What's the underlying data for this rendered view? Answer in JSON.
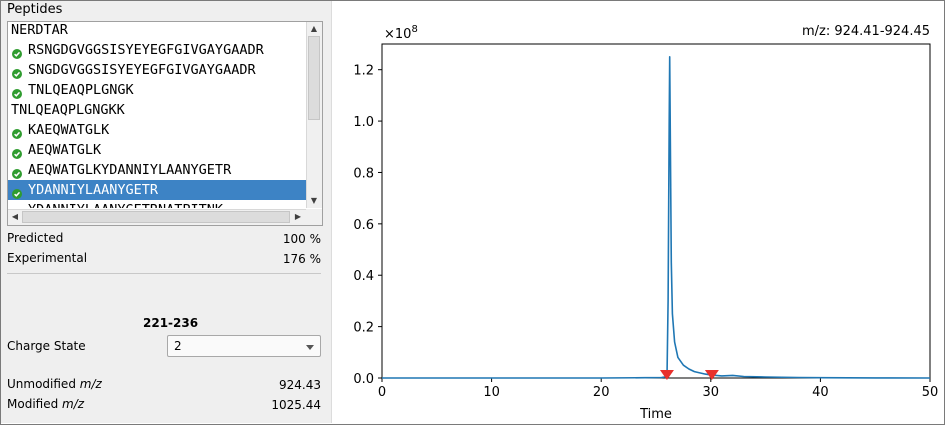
{
  "peptides": {
    "title": "Peptides",
    "items": [
      {
        "label": "NERDTAR",
        "checked": false,
        "selected": false
      },
      {
        "label": "RSNGDGVGGSISYEYEGFGIVGAYGAADR",
        "checked": true,
        "selected": false
      },
      {
        "label": "SNGDGVGGSISYEYEGFGIVGAYGAADR",
        "checked": true,
        "selected": false
      },
      {
        "label": "TNLQEAQPLGNGK",
        "checked": true,
        "selected": false
      },
      {
        "label": "TNLQEAQPLGNGKK",
        "checked": false,
        "selected": false
      },
      {
        "label": "KAEQWATGLK",
        "checked": true,
        "selected": false
      },
      {
        "label": "AEQWATGLK",
        "checked": true,
        "selected": false
      },
      {
        "label": "AEQWATGLKYDANNIYLAANYGETR",
        "checked": true,
        "selected": false
      },
      {
        "label": "YDANNIYLAANYGETR",
        "checked": true,
        "selected": true
      },
      {
        "label": "YDANNIYLAANYGETRNATPITNK",
        "checked": true,
        "selected": false
      }
    ]
  },
  "stats": {
    "predicted_label": "Predicted",
    "predicted_value": "100 %",
    "experimental_label": "Experimental",
    "experimental_value": "176 %"
  },
  "peptide_range": "221-236",
  "charge": {
    "label": "Charge State",
    "value": "2"
  },
  "mz": {
    "unmodified_label_prefix": "Unmodified ",
    "unmodified_label_italic": "m/z",
    "unmodified_value": "924.43",
    "modified_label_prefix": "Modified ",
    "modified_label_italic": "m/z",
    "modified_value": "1025.44"
  },
  "colors": {
    "selection": "#3d83c5",
    "check": "#2f9c2f",
    "trace": "#1f77b4",
    "marker": "#e8302c"
  },
  "chart_data": {
    "type": "line",
    "title": "m/z: 924.41-924.45",
    "xlabel": "Time",
    "ylabel": "",
    "y_multiplier_label": "×10",
    "y_multiplier_exp": "8",
    "xlim": [
      0,
      50
    ],
    "ylim": [
      0,
      1.3
    ],
    "xticks": [
      0,
      10,
      20,
      30,
      40,
      50
    ],
    "yticks": [
      0.0,
      0.2,
      0.4,
      0.6,
      0.8,
      1.0,
      1.2
    ],
    "ytick_labels": [
      "0.0",
      "0.2",
      "0.4",
      "0.6",
      "0.8",
      "1.0",
      "1.2"
    ],
    "series": [
      {
        "x": [
          0,
          5,
          10,
          15,
          20,
          24,
          25.5,
          26.0,
          26.1,
          26.2,
          26.25,
          26.3,
          26.4,
          26.5,
          26.7,
          27.0,
          27.5,
          28.0,
          28.5,
          29.0,
          29.5,
          30.0,
          31.0,
          32.0,
          33.0,
          35.0,
          38.0,
          40.0,
          45.0,
          50.0
        ],
        "y": [
          0.0,
          0.0,
          0.0,
          0.0,
          0.0,
          0.001,
          0.002,
          0.005,
          0.3,
          1.0,
          1.25,
          1.0,
          0.45,
          0.25,
          0.14,
          0.08,
          0.05,
          0.035,
          0.025,
          0.02,
          0.015,
          0.012,
          0.008,
          0.01,
          0.006,
          0.004,
          0.002,
          0.001,
          0.0005,
          0.0
        ]
      }
    ],
    "markers": [
      {
        "x": 26.0,
        "y": 0.0
      },
      {
        "x": 30.1,
        "y": 0.0
      }
    ],
    "grid": false,
    "legend": "none"
  }
}
